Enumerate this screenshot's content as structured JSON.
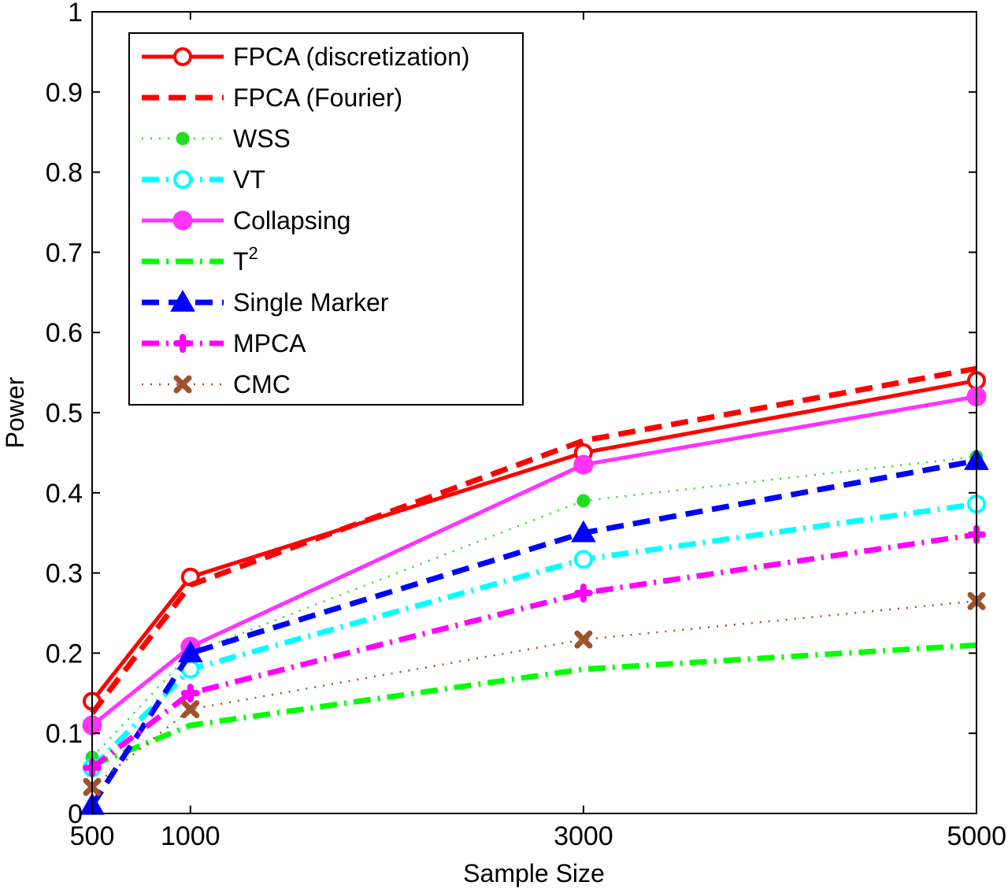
{
  "chart_data": {
    "type": "line",
    "title": "",
    "xlabel": "Sample Size",
    "ylabel": "Power",
    "x": [
      500,
      1000,
      3000,
      5000
    ],
    "x_tick_labels": [
      "500",
      "1000",
      "3000",
      "5000"
    ],
    "xlim": [
      500,
      5000
    ],
    "ylim": [
      0,
      1
    ],
    "y_ticks": [
      0,
      0.1,
      0.2,
      0.3,
      0.4,
      0.5,
      0.6,
      0.7,
      0.8,
      0.9,
      1
    ],
    "y_tick_labels": [
      "0",
      "0.1",
      "0.2",
      "0.3",
      "0.4",
      "0.5",
      "0.6",
      "0.7",
      "0.8",
      "0.9",
      "1"
    ],
    "grid": false,
    "legend_position": "top-left",
    "series": [
      {
        "name": "FPCA (discretization)",
        "values": [
          0.14,
          0.295,
          0.45,
          0.54
        ],
        "color": "#ff0000",
        "line_style": "solid",
        "marker": "open-circle"
      },
      {
        "name": "FPCA (Fourier)",
        "values": [
          0.125,
          0.285,
          0.465,
          0.555
        ],
        "color": "#ff0000",
        "line_style": "dashed",
        "marker": "none"
      },
      {
        "name": "WSS",
        "values": [
          0.07,
          0.2,
          0.39,
          0.445
        ],
        "color": "#22dd22",
        "line_style": "dotted",
        "marker": "filled-dot"
      },
      {
        "name": "VT",
        "values": [
          0.057,
          0.18,
          0.317,
          0.386
        ],
        "color": "#00ffff",
        "line_style": "dashdot",
        "marker": "open-circle"
      },
      {
        "name": "Collapsing",
        "values": [
          0.11,
          0.208,
          0.435,
          0.52
        ],
        "color": "#ff33ff",
        "line_style": "solid",
        "marker": "filled-circle"
      },
      {
        "name": "T2",
        "legend_base": "T",
        "legend_sup": "2",
        "values": [
          0.06,
          0.11,
          0.18,
          0.21
        ],
        "color": "#00ff00",
        "line_style": "dashdot",
        "marker": "none"
      },
      {
        "name": "Single Marker",
        "values": [
          0.01,
          0.2,
          0.35,
          0.44
        ],
        "color": "#0000ff",
        "line_style": "dashed",
        "marker": "triangle"
      },
      {
        "name": "MPCA",
        "values": [
          0.057,
          0.15,
          0.275,
          0.348
        ],
        "color": "#ff00ff",
        "line_style": "dashdot",
        "marker": "plus-dot"
      },
      {
        "name": "CMC",
        "values": [
          0.033,
          0.13,
          0.217,
          0.265
        ],
        "color": "#a0522d",
        "line_style": "dotted",
        "marker": "x"
      }
    ]
  }
}
